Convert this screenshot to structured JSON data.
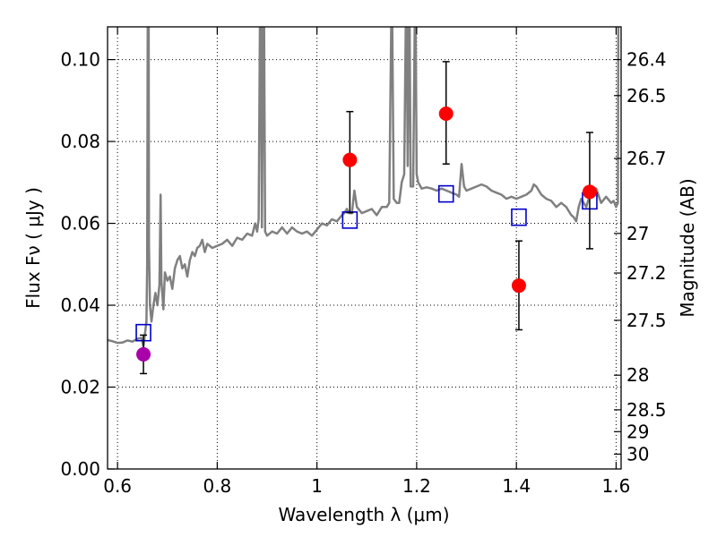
{
  "chart_data": {
    "type": "scatter",
    "xlabel": "Wavelength  λ (μm)",
    "ylabel": "Flux  Fν  ( μJy )",
    "ylabel_right": "Magnitude (AB)",
    "xlim": [
      0.58,
      1.61
    ],
    "ylim": [
      0.0,
      0.108
    ],
    "grid": true,
    "x_ticks": [
      {
        "value": 0.6,
        "label": "0.6"
      },
      {
        "value": 0.8,
        "label": "0.8"
      },
      {
        "value": 1.0,
        "label": "1"
      },
      {
        "value": 1.2,
        "label": "1.2"
      },
      {
        "value": 1.4,
        "label": "1.4"
      },
      {
        "value": 1.6,
        "label": "1.6"
      }
    ],
    "y_ticks": [
      {
        "value": 0.0,
        "label": "0.00"
      },
      {
        "value": 0.02,
        "label": "0.02"
      },
      {
        "value": 0.04,
        "label": "0.04"
      },
      {
        "value": 0.06,
        "label": "0.06"
      },
      {
        "value": 0.08,
        "label": "0.08"
      },
      {
        "value": 0.1,
        "label": "0.10"
      }
    ],
    "right_ticks": [
      {
        "value": 26.4,
        "label": "26.4"
      },
      {
        "value": 26.5,
        "label": "26.5"
      },
      {
        "value": 26.7,
        "label": "26.7"
      },
      {
        "value": 27,
        "label": "27"
      },
      {
        "value": 27.2,
        "label": "27.2"
      },
      {
        "value": 27.5,
        "label": "27.5"
      },
      {
        "value": 28,
        "label": "28"
      },
      {
        "value": 28.5,
        "label": "28.5"
      },
      {
        "value": 29,
        "label": "29"
      },
      {
        "value": 30,
        "label": "30"
      }
    ],
    "series": [
      {
        "kind": "line",
        "color": "#808080",
        "points": [
          [
            0.58,
            0.0315
          ],
          [
            0.59,
            0.0312
          ],
          [
            0.6,
            0.0308
          ],
          [
            0.61,
            0.0309
          ],
          [
            0.62,
            0.0314
          ],
          [
            0.63,
            0.0311
          ],
          [
            0.64,
            0.0318
          ],
          [
            0.648,
            0.032
          ],
          [
            0.652,
            0.03
          ],
          [
            0.655,
            0.033
          ],
          [
            0.658,
            0.036
          ],
          [
            0.6595,
            0.05
          ],
          [
            0.6605,
            0.108
          ],
          [
            0.6625,
            0.108
          ],
          [
            0.663,
            0.055
          ],
          [
            0.665,
            0.04
          ],
          [
            0.668,
            0.036
          ],
          [
            0.672,
            0.04
          ],
          [
            0.676,
            0.043
          ],
          [
            0.68,
            0.04
          ],
          [
            0.684,
            0.045
          ],
          [
            0.6865,
            0.067
          ],
          [
            0.688,
            0.046
          ],
          [
            0.692,
            0.039
          ],
          [
            0.695,
            0.048
          ],
          [
            0.7,
            0.046
          ],
          [
            0.705,
            0.047
          ],
          [
            0.71,
            0.044
          ],
          [
            0.715,
            0.049
          ],
          [
            0.72,
            0.051
          ],
          [
            0.725,
            0.052
          ],
          [
            0.73,
            0.049
          ],
          [
            0.735,
            0.05
          ],
          [
            0.74,
            0.047
          ],
          [
            0.745,
            0.051
          ],
          [
            0.75,
            0.053
          ],
          [
            0.755,
            0.052
          ],
          [
            0.76,
            0.054
          ],
          [
            0.765,
            0.0545
          ],
          [
            0.77,
            0.056
          ],
          [
            0.775,
            0.053
          ],
          [
            0.78,
            0.055
          ],
          [
            0.79,
            0.054
          ],
          [
            0.8,
            0.0545
          ],
          [
            0.81,
            0.055
          ],
          [
            0.82,
            0.056
          ],
          [
            0.83,
            0.0545
          ],
          [
            0.84,
            0.0565
          ],
          [
            0.85,
            0.056
          ],
          [
            0.86,
            0.0575
          ],
          [
            0.87,
            0.057
          ],
          [
            0.876,
            0.06
          ],
          [
            0.88,
            0.058
          ],
          [
            0.883,
            0.061
          ],
          [
            0.8855,
            0.108
          ],
          [
            0.8875,
            0.108
          ],
          [
            0.8895,
            0.059
          ],
          [
            0.892,
            0.108
          ],
          [
            0.894,
            0.108
          ],
          [
            0.896,
            0.058
          ],
          [
            0.9,
            0.057
          ],
          [
            0.91,
            0.058
          ],
          [
            0.92,
            0.0575
          ],
          [
            0.93,
            0.059
          ],
          [
            0.94,
            0.0575
          ],
          [
            0.95,
            0.059
          ],
          [
            0.96,
            0.058
          ],
          [
            0.97,
            0.0575
          ],
          [
            0.98,
            0.058
          ],
          [
            0.99,
            0.057
          ],
          [
            1.0,
            0.0585
          ],
          [
            1.01,
            0.06
          ],
          [
            1.02,
            0.0595
          ],
          [
            1.03,
            0.061
          ],
          [
            1.04,
            0.0605
          ],
          [
            1.05,
            0.062
          ],
          [
            1.055,
            0.0625
          ],
          [
            1.06,
            0.0635
          ],
          [
            1.065,
            0.0625
          ],
          [
            1.07,
            0.0625
          ],
          [
            1.075,
            0.068
          ],
          [
            1.08,
            0.064
          ],
          [
            1.09,
            0.0625
          ],
          [
            1.1,
            0.063
          ],
          [
            1.11,
            0.0635
          ],
          [
            1.12,
            0.062
          ],
          [
            1.13,
            0.064
          ],
          [
            1.14,
            0.064
          ],
          [
            1.145,
            0.065
          ],
          [
            1.149,
            0.108
          ],
          [
            1.151,
            0.108
          ],
          [
            1.154,
            0.066
          ],
          [
            1.16,
            0.065
          ],
          [
            1.165,
            0.065
          ],
          [
            1.17,
            0.07
          ],
          [
            1.175,
            0.072
          ],
          [
            1.178,
            0.108
          ],
          [
            1.18,
            0.108
          ],
          [
            1.182,
            0.074
          ],
          [
            1.184,
            0.108
          ],
          [
            1.186,
            0.108
          ],
          [
            1.188,
            0.069
          ],
          [
            1.193,
            0.069
          ],
          [
            1.196,
            0.108
          ],
          [
            1.198,
            0.108
          ],
          [
            1.2,
            0.072
          ],
          [
            1.203,
            0.07
          ],
          [
            1.21,
            0.0685
          ],
          [
            1.22,
            0.0688
          ],
          [
            1.23,
            0.0685
          ],
          [
            1.24,
            0.068
          ],
          [
            1.25,
            0.0685
          ],
          [
            1.26,
            0.068
          ],
          [
            1.27,
            0.0675
          ],
          [
            1.28,
            0.067
          ],
          [
            1.285,
            0.0665
          ],
          [
            1.29,
            0.0745
          ],
          [
            1.295,
            0.069
          ],
          [
            1.3,
            0.068
          ],
          [
            1.31,
            0.0685
          ],
          [
            1.32,
            0.069
          ],
          [
            1.33,
            0.0695
          ],
          [
            1.34,
            0.069
          ],
          [
            1.35,
            0.068
          ],
          [
            1.36,
            0.0675
          ],
          [
            1.37,
            0.067
          ],
          [
            1.38,
            0.066
          ],
          [
            1.39,
            0.0665
          ],
          [
            1.4,
            0.066
          ],
          [
            1.41,
            0.0665
          ],
          [
            1.42,
            0.067
          ],
          [
            1.43,
            0.068
          ],
          [
            1.435,
            0.0695
          ],
          [
            1.44,
            0.069
          ],
          [
            1.45,
            0.067
          ],
          [
            1.46,
            0.066
          ],
          [
            1.47,
            0.0655
          ],
          [
            1.48,
            0.064
          ],
          [
            1.49,
            0.065
          ],
          [
            1.5,
            0.064
          ],
          [
            1.51,
            0.062
          ],
          [
            1.515,
            0.0615
          ],
          [
            1.52,
            0.0605
          ],
          [
            1.525,
            0.064
          ],
          [
            1.53,
            0.066
          ],
          [
            1.54,
            0.064
          ],
          [
            1.55,
            0.068
          ],
          [
            1.56,
            0.0685
          ],
          [
            1.57,
            0.065
          ],
          [
            1.58,
            0.0665
          ],
          [
            1.59,
            0.065
          ],
          [
            1.595,
            0.0655
          ],
          [
            1.6,
            0.064
          ],
          [
            1.6035,
            0.065
          ],
          [
            1.6045,
            0.108
          ]
        ]
      },
      {
        "kind": "open-squares",
        "color": "#0000cc",
        "points": [
          [
            0.652,
            0.0333
          ],
          [
            1.066,
            0.0608
          ],
          [
            1.259,
            0.0672
          ],
          [
            1.405,
            0.0615
          ],
          [
            1.547,
            0.0655
          ]
        ]
      },
      {
        "kind": "points-with-errors",
        "color": "#ff0000",
        "points": [
          {
            "x": 1.066,
            "y": 0.0755,
            "lo": 0.0626,
            "hi": 0.0873
          },
          {
            "x": 1.259,
            "y": 0.0868,
            "lo": 0.0745,
            "hi": 0.0995
          },
          {
            "x": 1.405,
            "y": 0.0448,
            "lo": 0.034,
            "hi": 0.0557
          },
          {
            "x": 1.547,
            "y": 0.0677,
            "lo": 0.0538,
            "hi": 0.0822
          }
        ]
      },
      {
        "kind": "points-with-errors",
        "color": "#aa00aa",
        "points": [
          {
            "x": 0.652,
            "y": 0.028,
            "lo": 0.0233,
            "hi": 0.0327
          }
        ]
      }
    ]
  }
}
